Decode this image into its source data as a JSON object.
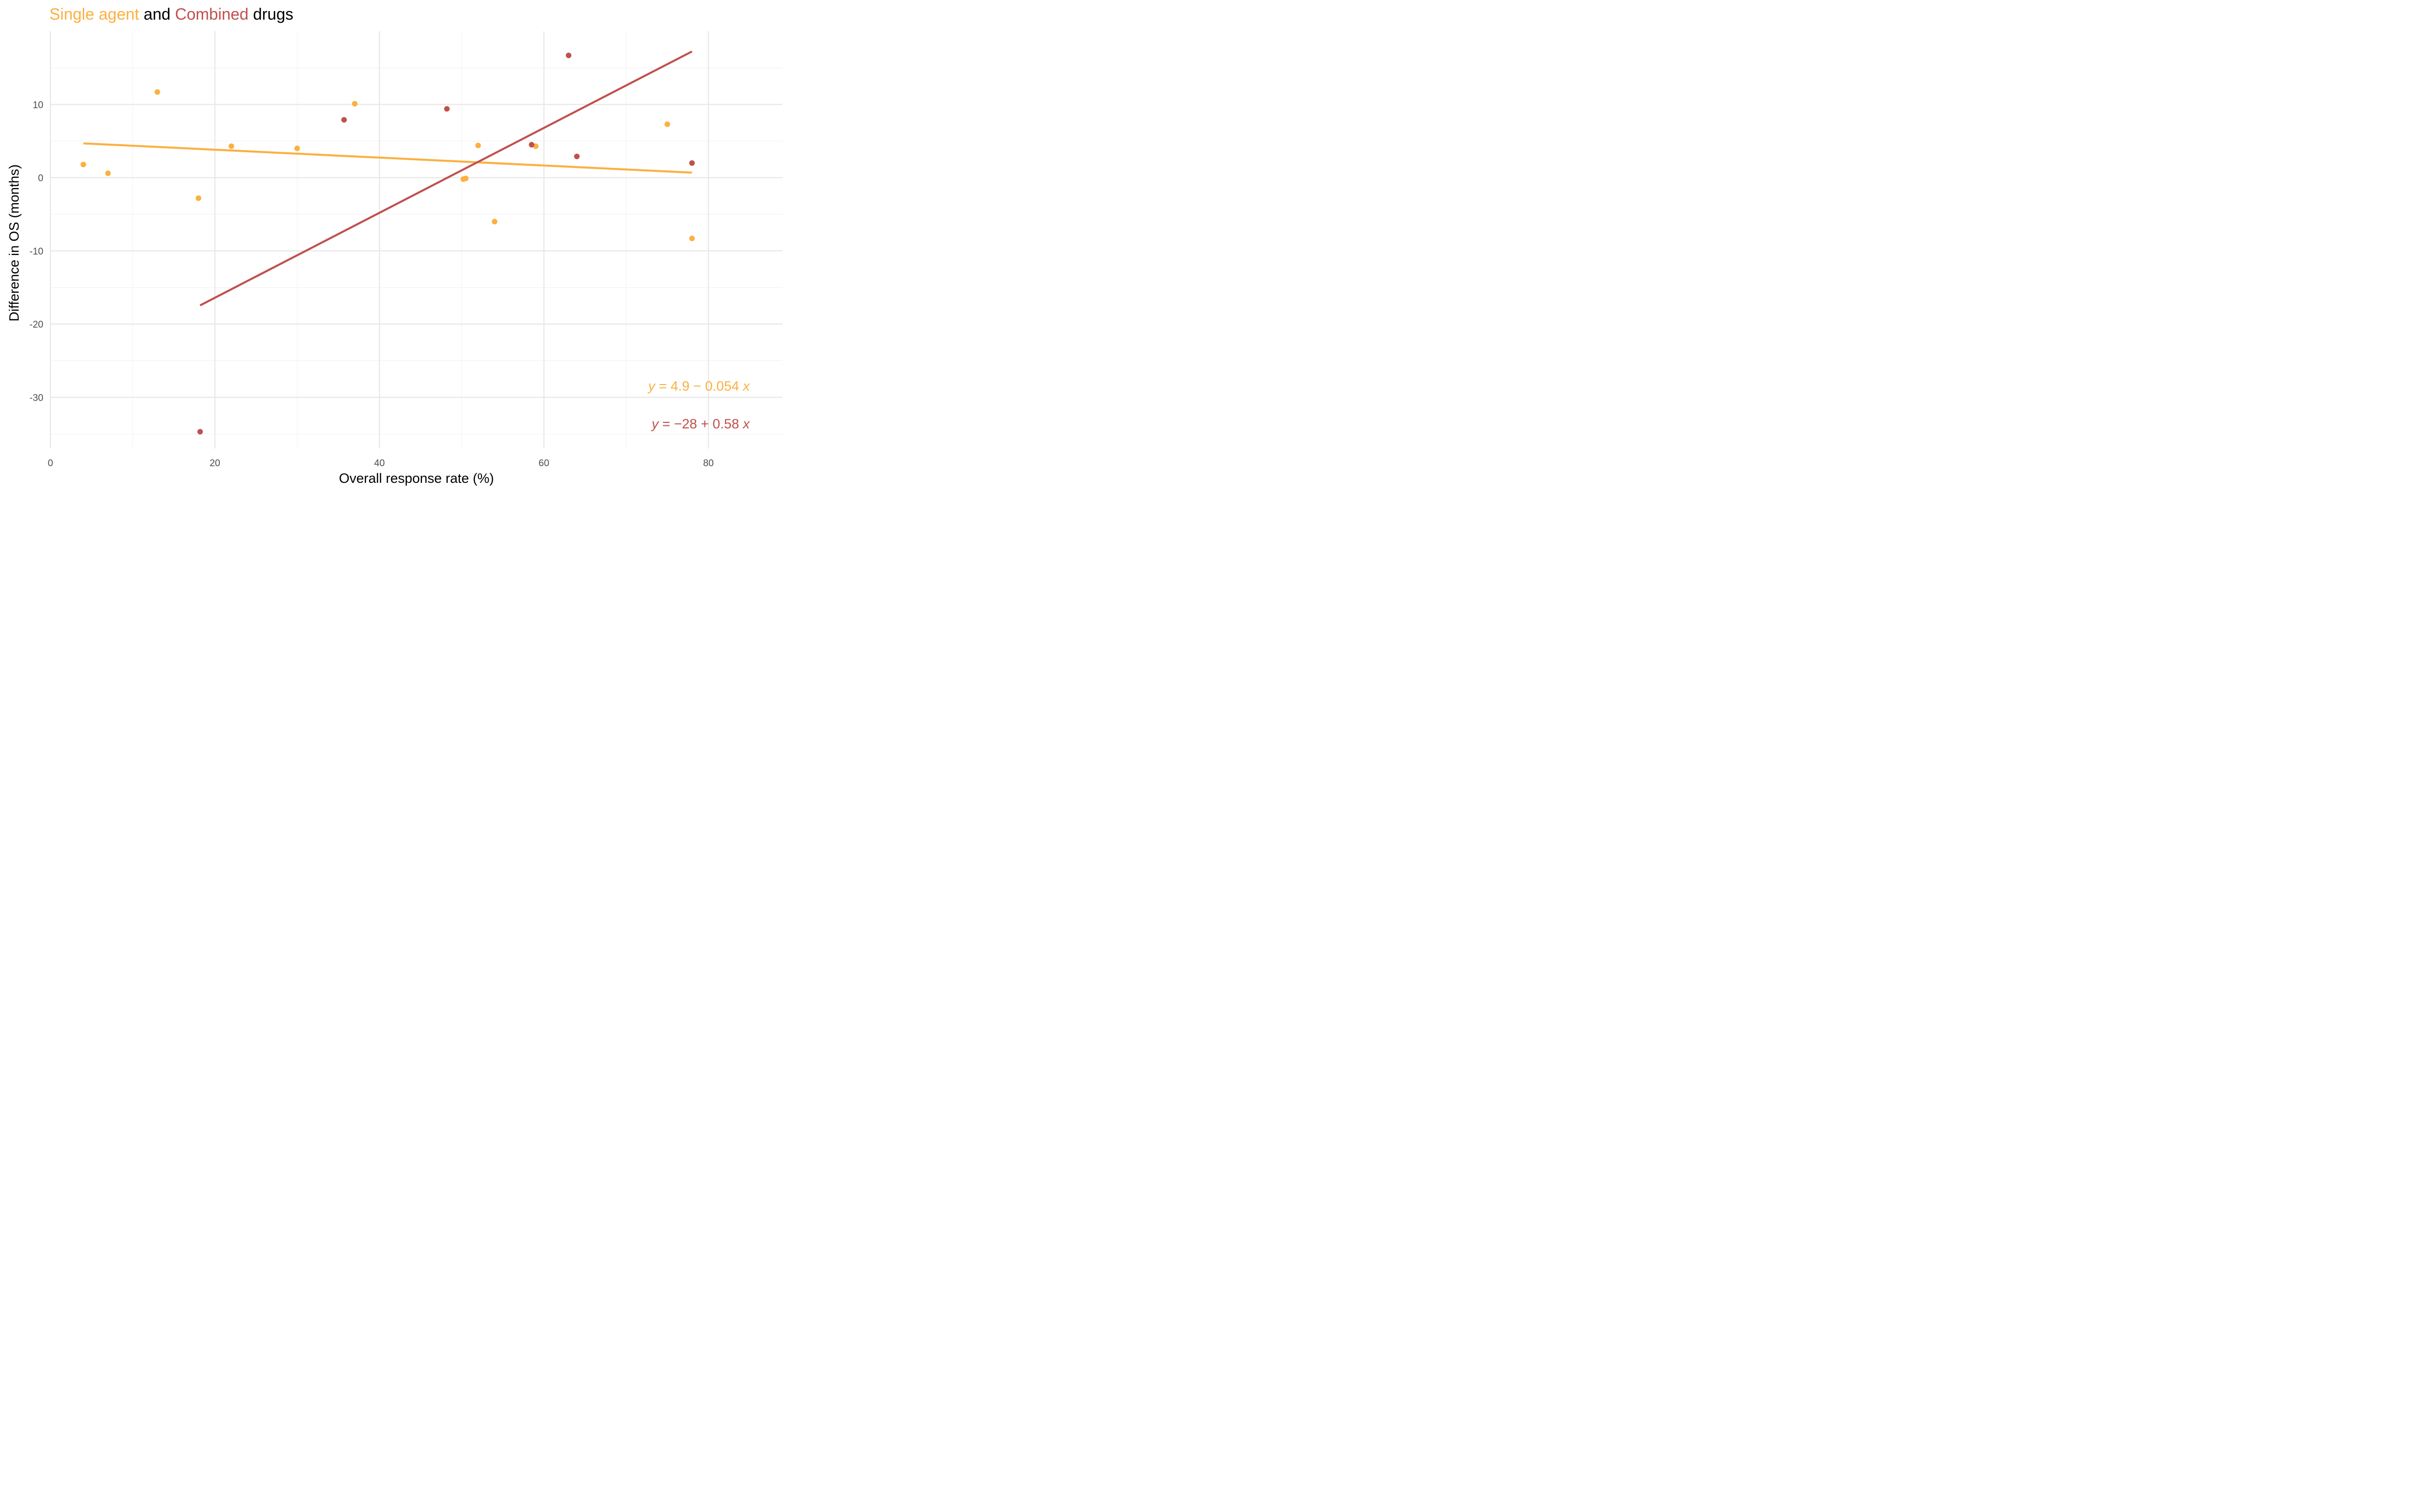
{
  "chart_data": {
    "type": "scatter",
    "title_parts": [
      "Single agent",
      " and ",
      "Combined",
      " drugs"
    ],
    "xlabel": "Overall response rate (%)",
    "ylabel": "Difference in OS (months)",
    "xlim": [
      0,
      89
    ],
    "ylim": [
      -37,
      20
    ],
    "x_ticks": [
      0,
      20,
      40,
      60,
      80
    ],
    "y_ticks": [
      10,
      0,
      -10,
      -20,
      -30
    ],
    "x_tick_labels": [
      "0",
      "20",
      "40",
      "60",
      "80"
    ],
    "y_tick_labels": [
      "10",
      "0",
      "-10",
      "-20",
      "-30"
    ],
    "grid": true,
    "series": [
      {
        "name": "Single agent",
        "color": "#FBB040",
        "points": [
          [
            4,
            1.8
          ],
          [
            7,
            0.6
          ],
          [
            13,
            11.7
          ],
          [
            18,
            -2.8
          ],
          [
            22,
            4.3
          ],
          [
            30,
            4.0
          ],
          [
            37,
            10.1
          ],
          [
            50.2,
            -0.2
          ],
          [
            50.5,
            -0.1
          ],
          [
            52,
            4.4
          ],
          [
            54,
            -6.0
          ],
          [
            59,
            4.3
          ],
          [
            75,
            7.3
          ],
          [
            78,
            -8.3
          ]
        ],
        "fit": {
          "intercept": 4.9,
          "slope": -0.054,
          "x_range": [
            4,
            78
          ]
        },
        "equation_parts": [
          "y",
          " = 4.9 − 0.054 ",
          "x"
        ]
      },
      {
        "name": "Combined",
        "color": "#C0504D",
        "points": [
          [
            18.2,
            -34.7
          ],
          [
            35.7,
            7.9
          ],
          [
            48.2,
            9.4
          ],
          [
            58.5,
            4.5
          ],
          [
            63,
            16.7
          ],
          [
            64,
            2.9
          ],
          [
            78,
            2.0
          ]
        ],
        "fit": {
          "intercept": -28,
          "slope": 0.58,
          "x_range": [
            18.2,
            78
          ]
        },
        "equation_parts": [
          "y",
          " = −28 + 0.58 ",
          "x"
        ]
      }
    ]
  }
}
